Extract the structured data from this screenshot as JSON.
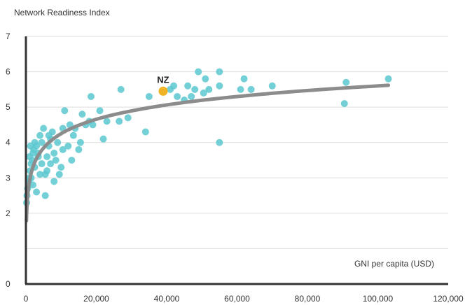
{
  "chart_data": {
    "type": "scatter",
    "ylabel": "Network Readiness Index",
    "xlabel": "GNI per capita (USD)",
    "xlim": [
      0,
      120000
    ],
    "ylim": [
      0,
      7
    ],
    "x_ticks": [
      "0",
      "20,000",
      "40,000",
      "60,000",
      "80,000",
      "100,000",
      "120,000"
    ],
    "y_ticks": [
      "0",
      "2",
      "3",
      "4",
      "5",
      "6",
      "7"
    ],
    "grid": "horizontal",
    "colors": {
      "points": "#5cc8d0",
      "highlight": "#f0b323",
      "trend": "#8c8c8c",
      "grid": "#dddddd",
      "axis": "#333333"
    },
    "points": [
      [
        200,
        2.3
      ],
      [
        300,
        2.5
      ],
      [
        500,
        2.7
      ],
      [
        800,
        2.9
      ],
      [
        1000,
        3.0
      ],
      [
        1200,
        3.2
      ],
      [
        1500,
        3.4
      ],
      [
        1800,
        3.5
      ],
      [
        2000,
        3.7
      ],
      [
        2200,
        3.8
      ],
      [
        2500,
        4.0
      ],
      [
        1000,
        3.6
      ],
      [
        1300,
        3.9
      ],
      [
        3000,
        3.9
      ],
      [
        3500,
        3.6
      ],
      [
        4000,
        4.2
      ],
      [
        4500,
        3.4
      ],
      [
        5000,
        4.4
      ],
      [
        5500,
        3.1
      ],
      [
        6000,
        3.6
      ],
      [
        6500,
        3.9
      ],
      [
        7000,
        4.1
      ],
      [
        7500,
        4.3
      ],
      [
        8000,
        2.9
      ],
      [
        8500,
        3.5
      ],
      [
        9000,
        4.0
      ],
      [
        10000,
        3.3
      ],
      [
        10500,
        4.4
      ],
      [
        11000,
        4.9
      ],
      [
        12000,
        3.9
      ],
      [
        12500,
        4.5
      ],
      [
        13000,
        3.5
      ],
      [
        14000,
        4.4
      ],
      [
        15000,
        3.8
      ],
      [
        16000,
        4.8
      ],
      [
        17000,
        4.5
      ],
      [
        18000,
        4.6
      ],
      [
        18500,
        5.3
      ],
      [
        19000,
        4.5
      ],
      [
        21000,
        4.9
      ],
      [
        22000,
        4.1
      ],
      [
        23000,
        4.6
      ],
      [
        27000,
        5.5
      ],
      [
        26500,
        4.6
      ],
      [
        29000,
        4.7
      ],
      [
        34000,
        4.3
      ],
      [
        35000,
        5.3
      ],
      [
        41000,
        5.5
      ],
      [
        42000,
        5.6
      ],
      [
        43000,
        5.3
      ],
      [
        45000,
        5.2
      ],
      [
        46000,
        5.6
      ],
      [
        47000,
        5.3
      ],
      [
        48000,
        5.5
      ],
      [
        49000,
        6.0
      ],
      [
        50500,
        5.4
      ],
      [
        51000,
        5.8
      ],
      [
        52000,
        5.5
      ],
      [
        55000,
        6.0
      ],
      [
        55000,
        5.6
      ],
      [
        55000,
        4.0
      ],
      [
        61000,
        5.5
      ],
      [
        62000,
        5.8
      ],
      [
        64000,
        5.5
      ],
      [
        70000,
        5.6
      ],
      [
        90500,
        5.1
      ],
      [
        91000,
        5.7
      ],
      [
        103000,
        5.8
      ],
      [
        3000,
        2.6
      ],
      [
        2000,
        2.8
      ],
      [
        4000,
        3.1
      ],
      [
        6000,
        3.2
      ],
      [
        9500,
        3.1
      ],
      [
        5500,
        2.5
      ],
      [
        2500,
        3.3
      ],
      [
        1500,
        3.0
      ],
      [
        3500,
        3.7
      ],
      [
        7000,
        3.4
      ],
      [
        8000,
        3.7
      ],
      [
        10500,
        3.8
      ],
      [
        13500,
        4.2
      ],
      [
        15500,
        4.0
      ],
      [
        4500,
        4.0
      ],
      [
        6500,
        4.2
      ]
    ],
    "highlight": {
      "label": "NZ",
      "x": 39000,
      "y": 5.45
    },
    "trend": {
      "type": "logarithmic",
      "x_range": [
        0,
        103000
      ]
    }
  }
}
